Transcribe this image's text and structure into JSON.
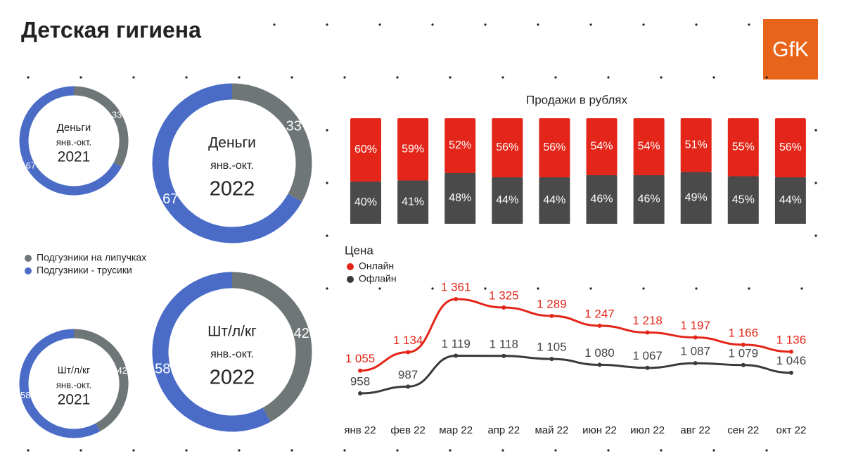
{
  "title": "Детская гигиена",
  "logo": "GfK",
  "legend": {
    "labels": [
      "Подгузники на липучках",
      "Подгузники - трусики"
    ],
    "colors": [
      "#6f7677",
      "#4a6cc7"
    ]
  },
  "chart_data": [
    {
      "type": "donut",
      "lines": [
        "Деньги",
        "янв.-окт.",
        "2021"
      ],
      "values": [
        33,
        67
      ]
    },
    {
      "type": "donut",
      "lines": [
        "Деньги",
        "янв.-окт.",
        "2022"
      ],
      "values": [
        33,
        67
      ]
    },
    {
      "type": "donut",
      "lines": [
        "Шт/л/кг",
        "янв.-окт.",
        "2021"
      ],
      "values": [
        42,
        58
      ]
    },
    {
      "type": "donut",
      "lines": [
        "Шт/л/кг",
        "янв.-окт.",
        "2022"
      ],
      "values": [
        42,
        58
      ]
    },
    {
      "type": "stacked-bar",
      "title": "Продажи в рублях",
      "series": [
        {
          "color": "#4a4a4a",
          "values": [
            40,
            41,
            48,
            44,
            44,
            46,
            46,
            49,
            45,
            44
          ]
        },
        {
          "color": "#e32619",
          "values": [
            60,
            59,
            52,
            56,
            56,
            54,
            54,
            51,
            55,
            56
          ]
        }
      ]
    },
    {
      "type": "line",
      "title": "Цена",
      "categories": [
        "янв 22",
        "фев 22",
        "мар 22",
        "апр 22",
        "май 22",
        "июн 22",
        "июл 22",
        "авг 22",
        "сен 22",
        "окт 22"
      ],
      "series": [
        {
          "name": "Онлайн",
          "color": "#e32619",
          "values": [
            1055,
            1134,
            1361,
            1325,
            1289,
            1247,
            1218,
            1197,
            1166,
            1136
          ],
          "value_labels": [
            "1 055",
            "1 134",
            "1 361",
            "1 325",
            "1 289",
            "1 247",
            "1 218",
            "1 197",
            "1 166",
            "1 136"
          ]
        },
        {
          "name": "Офлайн",
          "color": "#3a3a3a",
          "values": [
            958,
            987,
            1119,
            1118,
            1105,
            1080,
            1067,
            1087,
            1079,
            1046
          ],
          "value_labels": [
            "958",
            "987",
            "1 119",
            "1 118",
            "1 105",
            "1 080",
            "1 067",
            "1 087",
            "1 079",
            "1 046"
          ]
        }
      ]
    }
  ]
}
